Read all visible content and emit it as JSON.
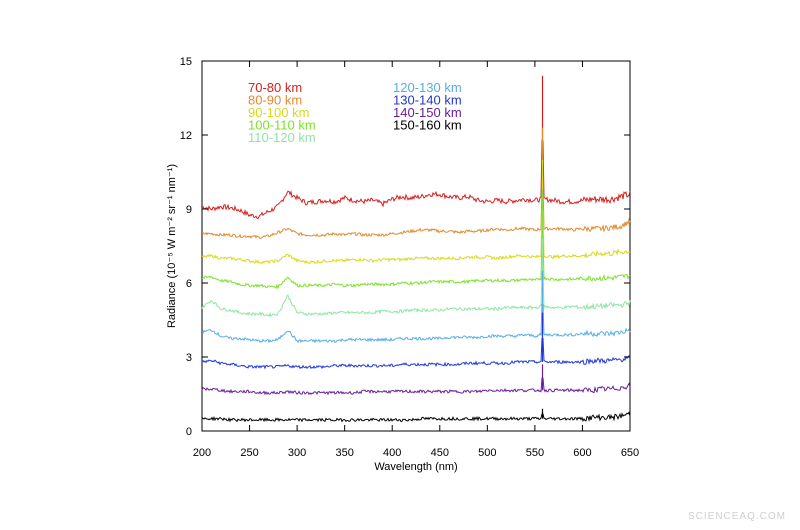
{
  "watermark": "SCIENCEAQ.COM",
  "chart_data": {
    "type": "line",
    "xlabel": "Wavelength (nm)",
    "ylabel": "Radiance (10⁻⁵ W m⁻² sr⁻¹ nm⁻¹)",
    "xlim": [
      200,
      650
    ],
    "ylim": [
      0,
      15
    ],
    "xticks": [
      200,
      250,
      300,
      350,
      400,
      450,
      500,
      550,
      600,
      650
    ],
    "yticks": [
      0,
      3,
      6,
      9,
      12,
      15
    ],
    "grid": false,
    "legend_position": "top-left",
    "x": [
      200,
      210,
      220,
      230,
      240,
      250,
      260,
      270,
      280,
      290,
      300,
      310,
      320,
      330,
      340,
      350,
      360,
      370,
      380,
      390,
      400,
      410,
      420,
      430,
      440,
      450,
      460,
      470,
      480,
      490,
      500,
      510,
      520,
      530,
      540,
      550,
      557,
      558,
      559,
      570,
      580,
      590,
      600,
      610,
      620,
      630,
      640,
      650
    ],
    "series": [
      {
        "name": "70-80 km",
        "color": "#d61f1f",
        "values": [
          9.1,
          9.0,
          9.1,
          9.05,
          8.95,
          8.75,
          8.7,
          8.9,
          9.1,
          9.7,
          9.45,
          9.25,
          9.3,
          9.35,
          9.3,
          9.45,
          9.35,
          9.3,
          9.35,
          9.2,
          9.4,
          9.5,
          9.45,
          9.5,
          9.6,
          9.6,
          9.5,
          9.45,
          9.5,
          9.35,
          9.3,
          9.35,
          9.3,
          9.35,
          9.4,
          9.35,
          9.4,
          14.4,
          9.4,
          9.35,
          9.3,
          9.3,
          9.35,
          9.4,
          9.4,
          9.4,
          9.5,
          9.6
        ]
      },
      {
        "name": "80-90 km",
        "color": "#e08a2e",
        "values": [
          8.0,
          8.0,
          7.95,
          7.95,
          7.9,
          7.9,
          7.85,
          7.9,
          8.05,
          8.2,
          8.0,
          7.95,
          7.95,
          7.95,
          8.0,
          7.95,
          8.0,
          7.95,
          7.95,
          7.95,
          8.0,
          8.05,
          8.1,
          8.15,
          8.15,
          8.1,
          8.1,
          8.05,
          8.1,
          8.1,
          8.15,
          8.2,
          8.15,
          8.2,
          8.2,
          8.15,
          8.2,
          12.3,
          8.2,
          8.2,
          8.2,
          8.15,
          8.2,
          8.2,
          8.2,
          8.25,
          8.3,
          8.5
        ]
      },
      {
        "name": "90-100 km",
        "color": "#d9d91a",
        "values": [
          7.05,
          7.1,
          7.0,
          7.0,
          6.95,
          6.9,
          6.85,
          6.85,
          6.9,
          7.15,
          6.9,
          6.85,
          6.85,
          6.9,
          6.9,
          6.9,
          6.95,
          6.95,
          6.9,
          6.95,
          6.95,
          6.95,
          7.0,
          7.0,
          7.0,
          7.0,
          7.0,
          7.0,
          7.05,
          7.05,
          7.05,
          7.0,
          7.05,
          7.1,
          7.1,
          7.05,
          7.1,
          11.0,
          7.1,
          7.05,
          7.1,
          7.1,
          7.1,
          7.15,
          7.2,
          7.2,
          7.25,
          7.3
        ]
      },
      {
        "name": "100-110 km",
        "color": "#7ee02c",
        "values": [
          6.2,
          6.25,
          6.1,
          6.05,
          5.95,
          5.9,
          5.9,
          5.85,
          5.85,
          6.25,
          5.9,
          5.9,
          5.9,
          5.9,
          5.95,
          5.9,
          5.9,
          5.95,
          5.95,
          5.95,
          5.95,
          6.0,
          6.0,
          6.0,
          6.05,
          6.05,
          6.05,
          6.05,
          6.05,
          6.1,
          6.1,
          6.1,
          6.1,
          6.1,
          6.15,
          6.1,
          6.2,
          9.8,
          6.2,
          6.15,
          6.15,
          6.15,
          6.2,
          6.2,
          6.2,
          6.2,
          6.25,
          6.3
        ]
      },
      {
        "name": "110-120 km",
        "color": "#8ee6a4",
        "values": [
          5.0,
          5.3,
          4.95,
          4.9,
          4.8,
          4.75,
          4.75,
          4.7,
          4.75,
          5.5,
          4.8,
          4.75,
          4.75,
          4.75,
          4.8,
          4.8,
          4.8,
          4.8,
          4.8,
          4.85,
          4.85,
          4.85,
          4.9,
          4.9,
          4.9,
          4.9,
          4.95,
          4.95,
          4.95,
          4.95,
          4.95,
          4.95,
          5.0,
          5.0,
          5.0,
          5.0,
          5.05,
          7.8,
          5.05,
          5.0,
          5.0,
          5.05,
          5.0,
          5.05,
          5.05,
          5.1,
          5.1,
          5.2
        ]
      },
      {
        "name": "120-130 km",
        "color": "#56aee6",
        "values": [
          4.0,
          4.1,
          3.85,
          3.75,
          3.75,
          3.7,
          3.65,
          3.65,
          3.7,
          4.1,
          3.65,
          3.65,
          3.65,
          3.65,
          3.65,
          3.7,
          3.7,
          3.7,
          3.7,
          3.7,
          3.7,
          3.75,
          3.75,
          3.75,
          3.75,
          3.75,
          3.8,
          3.8,
          3.8,
          3.8,
          3.85,
          3.85,
          3.85,
          3.85,
          3.9,
          3.85,
          3.9,
          6.5,
          3.9,
          3.9,
          3.9,
          3.9,
          3.95,
          3.95,
          3.95,
          3.95,
          4.0,
          4.1
        ]
      },
      {
        "name": "130-140 km",
        "color": "#1f38d6",
        "values": [
          2.8,
          2.85,
          2.75,
          2.7,
          2.65,
          2.6,
          2.6,
          2.6,
          2.6,
          2.65,
          2.6,
          2.6,
          2.6,
          2.6,
          2.65,
          2.65,
          2.65,
          2.65,
          2.65,
          2.65,
          2.65,
          2.7,
          2.7,
          2.7,
          2.7,
          2.7,
          2.7,
          2.7,
          2.75,
          2.75,
          2.75,
          2.75,
          2.75,
          2.8,
          2.8,
          2.8,
          2.8,
          4.8,
          2.8,
          2.8,
          2.8,
          2.8,
          2.8,
          2.85,
          2.85,
          2.85,
          2.9,
          2.95
        ]
      },
      {
        "name": "140-150 km",
        "color": "#6a1f9a",
        "values": [
          1.7,
          1.7,
          1.65,
          1.6,
          1.6,
          1.6,
          1.55,
          1.55,
          1.55,
          1.6,
          1.55,
          1.55,
          1.55,
          1.55,
          1.55,
          1.55,
          1.55,
          1.6,
          1.6,
          1.6,
          1.6,
          1.6,
          1.6,
          1.6,
          1.6,
          1.6,
          1.6,
          1.6,
          1.6,
          1.6,
          1.65,
          1.65,
          1.65,
          1.65,
          1.65,
          1.65,
          1.65,
          2.7,
          1.65,
          1.65,
          1.65,
          1.65,
          1.65,
          1.65,
          1.7,
          1.7,
          1.75,
          1.85
        ]
      },
      {
        "name": "150-160 km",
        "color": "#000000",
        "values": [
          0.5,
          0.5,
          0.5,
          0.45,
          0.45,
          0.45,
          0.45,
          0.45,
          0.45,
          0.45,
          0.45,
          0.45,
          0.45,
          0.45,
          0.45,
          0.45,
          0.45,
          0.45,
          0.45,
          0.45,
          0.45,
          0.45,
          0.45,
          0.5,
          0.5,
          0.5,
          0.5,
          0.5,
          0.5,
          0.5,
          0.5,
          0.5,
          0.5,
          0.5,
          0.5,
          0.5,
          0.5,
          0.9,
          0.5,
          0.5,
          0.5,
          0.5,
          0.5,
          0.55,
          0.55,
          0.55,
          0.6,
          0.7
        ]
      }
    ]
  }
}
